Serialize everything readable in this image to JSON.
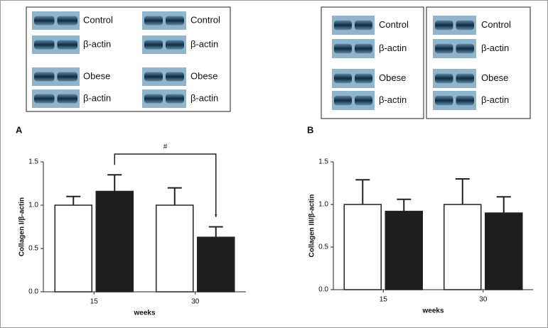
{
  "chart_data": [
    {
      "type": "bar",
      "panel": "A",
      "ylabel": "Collagen I/β-actin",
      "xlabel": "weeks",
      "categories": [
        "15",
        "30"
      ],
      "series": [
        {
          "color": "#ffffff",
          "values": [
            1.0,
            1.0
          ],
          "errors": [
            0.1,
            0.2
          ]
        },
        {
          "color": "#1e1e1e",
          "values": [
            1.16,
            0.63
          ],
          "errors": [
            0.19,
            0.12
          ]
        }
      ],
      "ylim": [
        0,
        1.5
      ],
      "yticks": [
        {
          "value": 0,
          "label": "0.0"
        },
        {
          "value": 0.5,
          "label": "0.5"
        },
        {
          "value": 1,
          "label": "1.0"
        },
        {
          "value": 1.5,
          "label": "1.5"
        }
      ],
      "annotations": [
        {
          "text": "#"
        },
        {
          "text": "*"
        }
      ],
      "blots": [
        [
          "Control",
          "β-actin",
          "Obese",
          "β-actin"
        ],
        [
          "Control",
          "β-actin",
          "Obese",
          "β-actin"
        ]
      ]
    },
    {
      "type": "bar",
      "panel": "B",
      "ylabel": "Collagen III/β-actin",
      "xlabel": "weeks",
      "categories": [
        "15",
        "30"
      ],
      "series": [
        {
          "color": "#ffffff",
          "values": [
            1.0,
            1.0
          ],
          "errors": [
            0.29,
            0.3
          ]
        },
        {
          "color": "#1e1e1e",
          "values": [
            0.92,
            0.9
          ],
          "errors": [
            0.14,
            0.19
          ]
        }
      ],
      "ylim": [
        0,
        1.5
      ],
      "yticks": [
        {
          "value": 0,
          "label": "0.0"
        },
        {
          "value": 0.5,
          "label": "0.5"
        },
        {
          "value": 1,
          "label": "1.0"
        },
        {
          "value": 1.5,
          "label": "1.5"
        }
      ],
      "annotations": [],
      "blots": [
        [
          "Control",
          "β-actin",
          "Obese",
          "β-actin"
        ],
        [
          "Control",
          "β-actin",
          "Obese",
          "β-actin"
        ]
      ]
    }
  ]
}
